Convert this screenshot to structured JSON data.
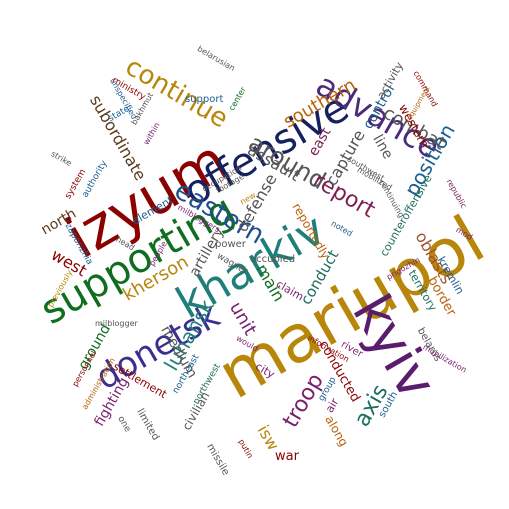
{
  "words": [
    {
      "text": "mariupol",
      "color": "#b8860b",
      "rotate": -30
    },
    {
      "text": "izyum",
      "color": "#8b0000",
      "rotate": -30
    },
    {
      "text": "kharkiv",
      "color": "#1e7f7a",
      "rotate": -30
    },
    {
      "text": "kyiv",
      "color": "#5a1d6e",
      "rotate": 60
    },
    {
      "text": "supporting",
      "color": "#0f6e1f",
      "rotate": -30
    },
    {
      "text": "offensive",
      "color": "#14215e",
      "rotate": -30
    },
    {
      "text": "advance",
      "color": "#4b2a7a",
      "rotate": 30
    },
    {
      "text": "donetsk",
      "color": "#3a2f8f",
      "rotate": -30
    },
    {
      "text": "continue",
      "color": "#b8860b",
      "rotate": 30
    },
    {
      "text": "eastern",
      "color": "#1f4f8f",
      "rotate": 30
    },
    {
      "text": "around",
      "color": "#555555",
      "rotate": 30
    },
    {
      "text": "report",
      "color": "#7a1f4f",
      "rotate": 30
    },
    {
      "text": "position",
      "color": "#1b5e8f",
      "rotate": -60
    },
    {
      "text": "combat",
      "color": "#555555",
      "rotate": 30
    },
    {
      "text": "kherson",
      "color": "#b8860b",
      "rotate": -30
    },
    {
      "text": "luhansk",
      "color": "#1e7f7a",
      "rotate": -60
    },
    {
      "text": "troop",
      "color": "#7a1f6e",
      "rotate": -60
    },
    {
      "text": "axis",
      "color": "#1e6f5e",
      "rotate": -60
    },
    {
      "text": "oblasts",
      "color": "#a0522d",
      "rotate": 60
    },
    {
      "text": "southern",
      "color": "#b8640b",
      "rotate": -30
    },
    {
      "text": "assault",
      "color": "#555555",
      "rotate": 30
    },
    {
      "text": "main",
      "color": "#0f6e1f",
      "rotate": 60
    },
    {
      "text": "unit",
      "color": "#7a1f6e",
      "rotate": 60
    },
    {
      "text": "capture",
      "color": "#555555",
      "rotate": -60
    },
    {
      "text": "defense",
      "color": "#555555",
      "rotate": -60
    },
    {
      "text": "subordinate",
      "color": "#5a3a1a",
      "rotate": 60
    },
    {
      "text": "west",
      "color": "#8b0000",
      "rotate": 30
    },
    {
      "text": "conduct",
      "color": "#1e6f5e",
      "rotate": -60
    },
    {
      "text": "ground",
      "color": "#0f6e1f",
      "rotate": -60
    },
    {
      "text": "artillery",
      "color": "#555555",
      "rotate": -60
    },
    {
      "text": "isw",
      "color": "#b8860b",
      "rotate": 60
    },
    {
      "text": "control",
      "color": "#1b5e8f",
      "rotate": -60
    },
    {
      "text": "east",
      "color": "#7a1f4f",
      "rotate": -60
    },
    {
      "text": "line",
      "color": "#555555",
      "rotate": 60
    },
    {
      "text": "north",
      "color": "#5a3a1a",
      "rotate": -30
    },
    {
      "text": "medium",
      "color": "#555555",
      "rotate": 60
    },
    {
      "text": "fighting",
      "color": "#7a1f6e",
      "rotate": -60
    },
    {
      "text": "civilian",
      "color": "#555555",
      "rotate": -60
    },
    {
      "text": "war",
      "color": "#8b0000",
      "rotate": 0
    },
    {
      "text": "along",
      "color": "#b8640b",
      "rotate": 60
    },
    {
      "text": "conducted",
      "color": "#8b0000",
      "rotate": 60
    },
    {
      "text": "border",
      "color": "#b8640b",
      "rotate": 60
    },
    {
      "text": "territory",
      "color": "#1e6f5e",
      "rotate": 60
    },
    {
      "text": "kremlin",
      "color": "#1b5e8f",
      "rotate": 60
    },
    {
      "text": "reportedly",
      "color": "#b8640b",
      "rotate": 60
    },
    {
      "text": "western",
      "color": "#8b0000",
      "rotate": 60
    },
    {
      "text": "activity",
      "color": "#555555",
      "rotate": -60
    },
    {
      "text": "counteroffensive",
      "color": "#1e6f5e",
      "rotate": -60
    },
    {
      "text": "element",
      "color": "#1b5e8f",
      "rotate": -30
    },
    {
      "text": "settlement",
      "color": "#8b0000",
      "rotate": 30
    },
    {
      "text": "support",
      "color": "#1b5e8f",
      "rotate": 0
    },
    {
      "text": "belarus",
      "color": "#555555",
      "rotate": 60
    },
    {
      "text": "south",
      "color": "#1b5e8f",
      "rotate": -60
    },
    {
      "text": "air",
      "color": "#7a1f6e",
      "rotate": -60
    },
    {
      "text": "missile",
      "color": "#555555",
      "rotate": 60
    },
    {
      "text": "power",
      "color": "#555555",
      "rotate": 0
    },
    {
      "text": "occupied",
      "color": "#555555",
      "rotate": 0
    },
    {
      "text": "claim",
      "color": "#7a1f6e",
      "rotate": 30
    },
    {
      "text": "limited",
      "color": "#555555",
      "rotate": 60
    },
    {
      "text": "one",
      "color": "#555555",
      "rotate": 60
    },
    {
      "text": "northwest",
      "color": "#1e6f5e",
      "rotate": -60
    },
    {
      "text": "northeast",
      "color": "#1b5e8f",
      "rotate": -60
    },
    {
      "text": "city",
      "color": "#7a1f6e",
      "rotate": 30
    },
    {
      "text": "river",
      "color": "#7a1f6e",
      "rotate": 30
    },
    {
      "text": "group",
      "color": "#1b5e8f",
      "rotate": -60
    },
    {
      "text": "zaporizhia",
      "color": "#1b5e8f",
      "rotate": 60
    },
    {
      "text": "milblogger",
      "color": "#555555",
      "rotate": 0
    },
    {
      "text": "information",
      "color": "#8b0000",
      "rotate": 30
    },
    {
      "text": "mobilization",
      "color": "#7a1f6e",
      "rotate": 30
    },
    {
      "text": "wagner",
      "color": "#555555",
      "rotate": 30
    },
    {
      "text": "people",
      "color": "#7a1f6e",
      "rotate": -60
    },
    {
      "text": "personnel",
      "color": "#8b0000",
      "rotate": -60
    },
    {
      "text": "administration",
      "color": "#b8640b",
      "rotate": -60
    },
    {
      "text": "putin",
      "color": "#8b0000",
      "rotate": 60
    },
    {
      "text": "would",
      "color": "#7a1f6e",
      "rotate": 30
    },
    {
      "text": "head",
      "color": "#555555",
      "rotate": 30
    },
    {
      "text": "milbloggers",
      "color": "#7a1f6e",
      "rotate": 30
    },
    {
      "text": "previously",
      "color": "#b8860b",
      "rotate": -60
    },
    {
      "text": "system",
      "color": "#8b0000",
      "rotate": -60
    },
    {
      "text": "authority",
      "color": "#1b5e8f",
      "rotate": -60
    },
    {
      "text": "strike",
      "color": "#555555",
      "rotate": 30
    },
    {
      "text": "ministry",
      "color": "#8b0000",
      "rotate": 30
    },
    {
      "text": "unspecified",
      "color": "#1b5e8f",
      "rotate": 60
    },
    {
      "text": "state",
      "color": "#1b5e8f",
      "rotate": -30
    },
    {
      "text": "bakhmut",
      "color": "#555555",
      "rotate": -60
    },
    {
      "text": "within",
      "color": "#7a1f6e",
      "rotate": -60
    },
    {
      "text": "belarusian",
      "color": "#555555",
      "rotate": 30
    },
    {
      "text": "center",
      "color": "#0f6e1f",
      "rotate": -60
    },
    {
      "text": "occupation",
      "color": "#555555",
      "rotate": -30
    },
    {
      "text": "footage",
      "color": "#555555",
      "rotate": -30
    },
    {
      "text": "new",
      "color": "#b8860b",
      "rotate": -30
    },
    {
      "text": "equipment",
      "color": "#b8640b",
      "rotate": -60
    },
    {
      "text": "command",
      "color": "#8b0000",
      "rotate": 60
    },
    {
      "text": "southwest",
      "color": "#555555",
      "rotate": 30
    },
    {
      "text": "mobilized",
      "color": "#555555",
      "rotate": 30
    },
    {
      "text": "continuing",
      "color": "#555555",
      "rotate": 60
    },
    {
      "text": "republic",
      "color": "#7a1f4f",
      "rotate": 60
    },
    {
      "text": "noted",
      "color": "#1b5e8f",
      "rotate": 30
    },
    {
      "text": "prigozhin",
      "color": "#7a1f6e",
      "rotate": -30
    },
    {
      "text": "mod",
      "color": "#7a1f6e",
      "rotate": 30
    }
  ]
}
